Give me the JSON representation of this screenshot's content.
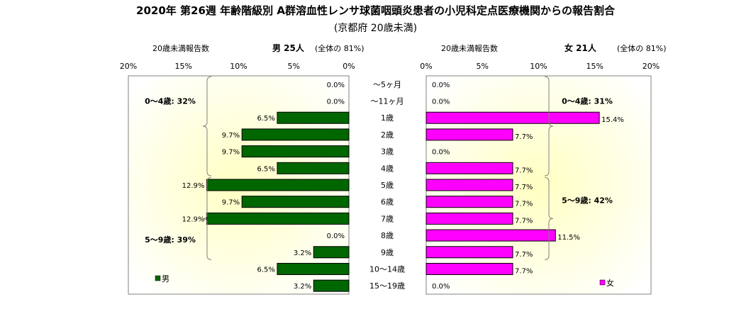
{
  "title": "2020年 第26週 年齢階級別 A群溶血性レンサ球菌咽頭炎患者の小児科定点医療機関からの報告割合",
  "subtitle": "(京都府 20歳未満)",
  "header": {
    "male_count_label": "20歳未満報告数",
    "male_summary": "男  25人",
    "male_note": "(全体の  81%)",
    "female_count_label": "20歳未満報告数",
    "female_summary": "女  21人",
    "female_note": "(全体の  81%)"
  },
  "colors": {
    "male": "#006600",
    "female": "#ff00ff",
    "plot_bg": "#ffffe0"
  },
  "chart_data": [
    {
      "type": "bar",
      "orientation": "horizontal",
      "direction": "right-to-left",
      "categories": [
        "～5ヶ月",
        "～11ヶ月",
        "1歳",
        "2歳",
        "3歳",
        "4歳",
        "5歳",
        "6歳",
        "7歳",
        "8歳",
        "9歳",
        "10～14歳",
        "15～19歳"
      ],
      "series": [
        {
          "name": "男",
          "values": [
            0.0,
            0.0,
            6.5,
            9.7,
            9.7,
            6.5,
            12.9,
            9.7,
            12.9,
            0.0,
            3.2,
            6.5,
            3.2
          ]
        }
      ],
      "value_labels": [
        "0.0%",
        "0.0%",
        "6.5%",
        "9.7%",
        "9.7%",
        "6.5%",
        "12.9%",
        "9.7%",
        "12.9%",
        "0.0%",
        "3.2%",
        "6.5%",
        "3.2%"
      ],
      "xlim": [
        0,
        20
      ],
      "ticks": [
        "0%",
        "5%",
        "10%",
        "15%",
        "20%"
      ],
      "legend": "男",
      "annotations": [
        {
          "text": "0～4歳: 32%",
          "from": 0,
          "to": 5
        },
        {
          "text": "5～9歳: 39%",
          "from": 6,
          "to": 10
        }
      ]
    },
    {
      "type": "bar",
      "orientation": "horizontal",
      "direction": "left-to-right",
      "categories": [
        "～5ヶ月",
        "～11ヶ月",
        "1歳",
        "2歳",
        "3歳",
        "4歳",
        "5歳",
        "6歳",
        "7歳",
        "8歳",
        "9歳",
        "10～14歳",
        "15～19歳"
      ],
      "series": [
        {
          "name": "女",
          "values": [
            0.0,
            0.0,
            15.4,
            7.7,
            0.0,
            7.7,
            7.7,
            7.7,
            7.7,
            11.5,
            7.7,
            7.7,
            0.0
          ]
        }
      ],
      "value_labels": [
        "0.0%",
        "0.0%",
        "15.4%",
        "7.7%",
        "0.0%",
        "7.7%",
        "7.7%",
        "7.7%",
        "7.7%",
        "11.5%",
        "7.7%",
        "7.7%",
        "0.0%"
      ],
      "xlim": [
        0,
        20
      ],
      "ticks": [
        "0%",
        "5%",
        "10%",
        "15%",
        "20%"
      ],
      "legend": "女",
      "annotations": [
        {
          "text": "0～4歳: 31%",
          "from": 0,
          "to": 5
        },
        {
          "text": "5～9歳: 42%",
          "from": 6,
          "to": 10
        }
      ]
    }
  ]
}
